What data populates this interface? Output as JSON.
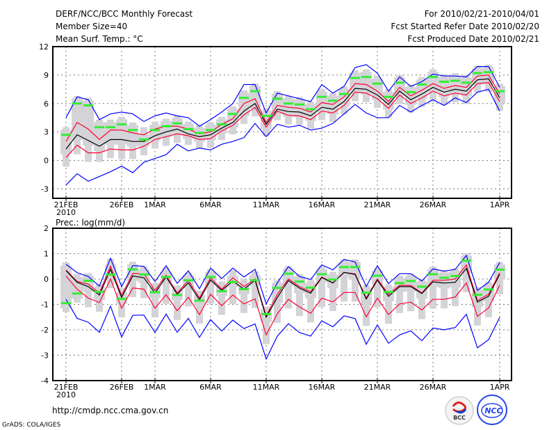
{
  "header": {
    "title": "DERF/NCC/BCC Monthly Forecast",
    "member_size": "Member Size=40",
    "variable": "Mean Surf. Temp.: °C",
    "period": "For 2010/02/21-2010/04/01",
    "refer_date": "Fcst Started Refer Date 2010/02/20",
    "produced_date": "Fcst Produced Date 2010/02/21"
  },
  "footer": {
    "url": "http://cmdp.ncc.cma.gov.cn",
    "credit": "GrADS: COLA/IGES",
    "logos": [
      "BCC",
      "NCC"
    ]
  },
  "colors": {
    "max_min": "#0000ff",
    "percentile": "#ff0033",
    "mean": "#000000",
    "observed": "#33ee33",
    "spread_box": "#d4d4d8"
  },
  "chart_data": [
    {
      "type": "line",
      "title": "Mean Surf. Temp.: °C",
      "ylabel": "°C",
      "ylim": [
        -4,
        12
      ],
      "yticks": [
        "12",
        "9",
        "6",
        "3",
        "0",
        "-3"
      ],
      "ytick_values": [
        12,
        9,
        6,
        3,
        0,
        -3
      ],
      "x_start": "2010-02-21",
      "n_days": 40,
      "xticks": [
        {
          "day": 0,
          "label": "21FEB",
          "sub": "2010"
        },
        {
          "day": 5,
          "label": "26FEB"
        },
        {
          "day": 8,
          "label": "1MAR"
        },
        {
          "day": 13,
          "label": "6MAR"
        },
        {
          "day": 18,
          "label": "11MAR"
        },
        {
          "day": 23,
          "label": "16MAR"
        },
        {
          "day": 28,
          "label": "21MAR"
        },
        {
          "day": 33,
          "label": "26MAR"
        },
        {
          "day": 39,
          "label": "1APR"
        }
      ],
      "grid": true,
      "series": [
        {
          "name": "max",
          "values": [
            4.5,
            6.7,
            6.4,
            4.3,
            4.9,
            5.1,
            4.9,
            4.1,
            4.7,
            5.0,
            4.7,
            4.5,
            3.6,
            4.3,
            5.1,
            6.0,
            8.0,
            8.0,
            5.0,
            7.1,
            6.8,
            6.5,
            6.2,
            8.0,
            7.1,
            7.8,
            9.8,
            10.1,
            9.2,
            7.3,
            8.8,
            7.8,
            8.3,
            9.1,
            8.9,
            8.9,
            8.8,
            9.9,
            9.9,
            7.7
          ]
        },
        {
          "name": "upper",
          "values": [
            2.0,
            4.0,
            3.3,
            2.2,
            3.2,
            3.2,
            2.9,
            2.7,
            3.3,
            3.6,
            3.6,
            3.3,
            2.8,
            3.0,
            3.8,
            4.4,
            6.0,
            6.5,
            4.0,
            5.8,
            5.6,
            5.5,
            5.1,
            6.1,
            5.9,
            6.7,
            8.1,
            8.0,
            7.3,
            6.2,
            7.7,
            6.8,
            7.4,
            8.1,
            7.6,
            7.9,
            7.7,
            8.9,
            9.0,
            7.0
          ]
        },
        {
          "name": "mean",
          "values": [
            1.2,
            2.7,
            2.1,
            1.5,
            2.2,
            2.2,
            2.0,
            2.0,
            2.6,
            3.0,
            3.3,
            2.8,
            2.5,
            2.7,
            3.4,
            4.0,
            5.2,
            6.0,
            3.8,
            5.4,
            5.15,
            5.1,
            4.7,
            5.6,
            5.4,
            6.2,
            7.6,
            7.5,
            6.9,
            5.9,
            7.3,
            6.4,
            7.0,
            7.7,
            7.2,
            7.5,
            7.3,
            8.5,
            8.6,
            6.6
          ]
        },
        {
          "name": "lower",
          "values": [
            0.3,
            1.6,
            0.8,
            0.8,
            1.2,
            1.1,
            1.1,
            1.5,
            2.2,
            2.5,
            2.8,
            2.6,
            2.2,
            2.3,
            3.1,
            3.7,
            4.8,
            5.6,
            3.5,
            5.2,
            4.75,
            4.7,
            4.3,
            5.2,
            5.0,
            5.8,
            7.2,
            7.1,
            6.5,
            5.5,
            6.9,
            6.0,
            6.6,
            7.3,
            6.8,
            7.1,
            6.9,
            8.1,
            8.2,
            6.2
          ]
        },
        {
          "name": "min",
          "values": [
            -2.6,
            -1.4,
            -2.2,
            -1.7,
            -1.2,
            -0.6,
            -1.3,
            -0.2,
            0.2,
            0.6,
            1.7,
            1.0,
            1.3,
            1.1,
            1.7,
            2.0,
            2.4,
            3.9,
            2.5,
            3.8,
            3.5,
            3.7,
            3.2,
            3.4,
            3.9,
            4.9,
            5.9,
            5.0,
            4.5,
            4.5,
            5.8,
            5.1,
            5.8,
            6.4,
            5.8,
            6.6,
            6.1,
            7.2,
            7.5,
            5.2
          ]
        },
        {
          "name": "observed",
          "values": [
            2.7,
            6.0,
            5.8,
            3.5,
            3.5,
            3.8,
            3.2,
            2.2,
            3.2,
            3.6,
            3.9,
            3.3,
            2.9,
            3.2,
            3.8,
            4.9,
            6.6,
            7.3,
            4.7,
            6.5,
            6.0,
            5.9,
            5.4,
            6.7,
            6.3,
            7.0,
            8.7,
            8.8,
            8.1,
            6.7,
            8.2,
            7.2,
            8.0,
            8.8,
            8.3,
            8.4,
            8.2,
            9.2,
            9.3,
            7.3
          ]
        }
      ]
    },
    {
      "type": "line",
      "title": "Prec.: log(mm/d)",
      "ylabel": "log(mm/d)",
      "ylim": [
        -4,
        2
      ],
      "yticks": [
        "2",
        "1",
        "0",
        "-1",
        "-2",
        "-3",
        "-4"
      ],
      "ytick_values": [
        2,
        1,
        0,
        -1,
        -2,
        -3,
        -4
      ],
      "x_start": "2010-02-21",
      "n_days": 40,
      "xticks": [
        {
          "day": 0,
          "label": "21FEB",
          "sub": "2010"
        },
        {
          "day": 5,
          "label": "26FEB"
        },
        {
          "day": 8,
          "label": "1MAR"
        },
        {
          "day": 13,
          "label": "6MAR"
        },
        {
          "day": 18,
          "label": "11MAR"
        },
        {
          "day": 23,
          "label": "16MAR"
        },
        {
          "day": 28,
          "label": "21MAR"
        },
        {
          "day": 33,
          "label": "26MAR"
        },
        {
          "day": 39,
          "label": "1APR"
        }
      ],
      "grid": true,
      "series": [
        {
          "name": "max",
          "values": [
            0.58,
            0.25,
            0.1,
            -0.28,
            0.82,
            -0.3,
            0.53,
            0.5,
            -0.1,
            0.52,
            -0.17,
            0.32,
            -0.38,
            0.43,
            0.02,
            0.43,
            0.08,
            0.38,
            -0.98,
            -0.15,
            0.49,
            0.1,
            -0.02,
            0.56,
            0.36,
            0.77,
            0.67,
            -0.3,
            0.52,
            -0.18,
            0.21,
            0.21,
            -0.08,
            0.4,
            0.31,
            0.38,
            0.93,
            -0.45,
            -0.13,
            0.65
          ]
        },
        {
          "name": "upper",
          "values": [
            0.35,
            -0.1,
            -0.2,
            -0.55,
            0.5,
            -0.65,
            0.22,
            0.2,
            -0.45,
            0.15,
            -0.55,
            -0.05,
            -0.75,
            0.05,
            -0.4,
            0.05,
            -0.3,
            0.0,
            -1.45,
            -0.6,
            0.0,
            -0.3,
            -0.5,
            0.08,
            -0.15,
            0.26,
            0.2,
            -0.75,
            0.0,
            -0.6,
            -0.25,
            -0.25,
            -0.55,
            -0.05,
            -0.05,
            0.0,
            0.55,
            -0.85,
            -0.6,
            0.25
          ]
        },
        {
          "name": "mean",
          "values": [
            0.33,
            -0.13,
            -0.3,
            -0.63,
            0.38,
            -0.73,
            0.12,
            0.05,
            -0.55,
            0.08,
            -0.6,
            -0.15,
            -0.82,
            -0.04,
            -0.45,
            -0.08,
            -0.4,
            -0.05,
            -1.5,
            -0.73,
            -0.06,
            -0.36,
            -0.56,
            0.06,
            -0.16,
            0.26,
            0.18,
            -0.79,
            -0.04,
            -0.68,
            -0.3,
            -0.3,
            -0.57,
            -0.11,
            -0.16,
            -0.13,
            0.42,
            -0.91,
            -0.68,
            0.19
          ]
        },
        {
          "name": "lower",
          "values": [
            0.12,
            -0.4,
            -0.75,
            -0.93,
            0.0,
            -1.15,
            -0.35,
            -0.4,
            -1.15,
            -0.62,
            -1.25,
            -0.72,
            -1.4,
            -0.6,
            -1.05,
            -0.63,
            -0.98,
            -0.78,
            -2.2,
            -1.37,
            -0.8,
            -1.1,
            -1.35,
            -0.75,
            -0.9,
            -0.53,
            -0.53,
            -1.49,
            -0.75,
            -1.4,
            -0.98,
            -0.91,
            -1.22,
            -0.8,
            -0.8,
            -0.71,
            -0.16,
            -1.47,
            -1.14,
            -0.24
          ]
        },
        {
          "name": "min",
          "values": [
            -0.8,
            -1.55,
            -1.7,
            -2.1,
            -1.07,
            -2.28,
            -1.43,
            -1.42,
            -2.1,
            -1.38,
            -2.1,
            -1.55,
            -2.3,
            -1.6,
            -2.05,
            -1.62,
            -1.95,
            -1.77,
            -3.15,
            -2.25,
            -1.76,
            -2.11,
            -2.25,
            -1.65,
            -1.88,
            -1.45,
            -1.56,
            -2.57,
            -1.81,
            -2.53,
            -2.2,
            -2.04,
            -2.43,
            -1.93,
            -2.0,
            -1.91,
            -1.39,
            -2.71,
            -2.39,
            -1.51
          ]
        },
        {
          "name": "observed",
          "values": [
            -0.95,
            -0.57,
            -0.07,
            -0.5,
            0.17,
            -0.78,
            0.38,
            0.18,
            -0.52,
            0.08,
            -0.63,
            -0.05,
            -0.85,
            0.08,
            -0.48,
            -0.12,
            -0.4,
            -0.05,
            -1.38,
            -0.35,
            0.21,
            -0.1,
            -0.34,
            0.19,
            -0.02,
            0.47,
            0.47,
            -0.54,
            0.13,
            -0.51,
            -0.16,
            -0.08,
            -0.3,
            0.19,
            0.05,
            0.12,
            0.72,
            -0.62,
            -0.41,
            0.37
          ]
        }
      ]
    }
  ]
}
